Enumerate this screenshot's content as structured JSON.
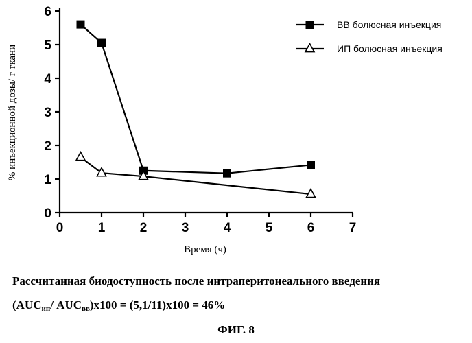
{
  "chart_data": {
    "type": "line",
    "xlabel": "Время (ч)",
    "ylabel": "% инъекционной дозы/ г ткани",
    "xlim": [
      0,
      7
    ],
    "ylim": [
      0,
      6
    ],
    "x_ticks": [
      0,
      1,
      2,
      3,
      4,
      5,
      6,
      7
    ],
    "y_ticks": [
      0,
      1,
      2,
      3,
      4,
      5,
      6
    ],
    "grid": false,
    "legend_position": "top-right",
    "series": [
      {
        "name": "ВВ болюсная инъекция",
        "marker": "filled-square",
        "x": [
          0.5,
          1,
          2,
          4,
          6
        ],
        "values": [
          5.6,
          5.05,
          1.25,
          1.17,
          1.42
        ]
      },
      {
        "name": "ИП болюсная инъекция",
        "marker": "open-triangle",
        "x": [
          0.5,
          1,
          2,
          6
        ],
        "values": [
          1.65,
          1.18,
          1.08,
          0.55
        ]
      }
    ]
  },
  "caption": {
    "line1": "Рассчитанная биодоступность после интраперитонеального введения",
    "auc_open": "(AUC",
    "auc_sub1": "ип",
    "auc_mid": "/ AUC",
    "auc_sub2": "вв",
    "auc_rest": ")x100 = (5,1/11)x100 = 46%"
  },
  "figure_label": "ФИГ. 8"
}
